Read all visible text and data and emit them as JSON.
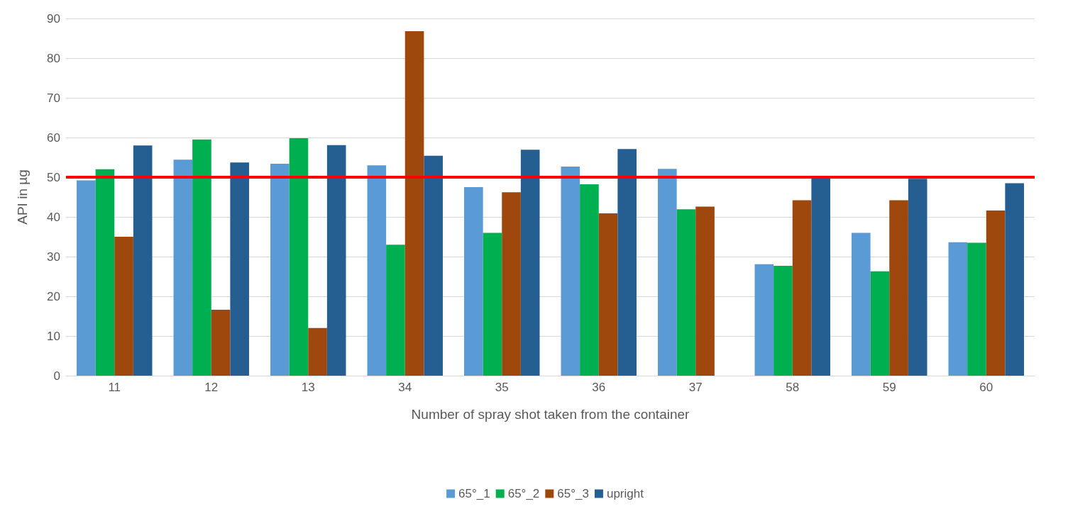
{
  "chart_data": {
    "type": "bar",
    "xlabel": "Number of spray shot taken from the container",
    "ylabel": "API in µg",
    "categories": [
      "11",
      "12",
      "13",
      "34",
      "35",
      "36",
      "37",
      "58",
      "59",
      "60"
    ],
    "series": [
      {
        "name": "65°_1",
        "color": "#5b9bd5",
        "values": [
          49.2,
          54.4,
          53.4,
          53,
          47.5,
          52.7,
          52.1,
          28.1,
          36,
          33.6
        ]
      },
      {
        "name": "65°_2",
        "color": "#00b050",
        "values": [
          52,
          59.5,
          59.8,
          33,
          36,
          48.2,
          41.9,
          27.7,
          26.3,
          33.5
        ]
      },
      {
        "name": "65°_3",
        "color": "#9e480e",
        "values": [
          35,
          16.6,
          12,
          86.8,
          46.2,
          40.9,
          42.6,
          44.2,
          44.2,
          41.6
        ]
      },
      {
        "name": "upright",
        "color": "#255e91",
        "values": [
          58,
          53.7,
          58.1,
          55.4,
          56.9,
          57.1,
          null,
          49.9,
          49.6,
          48.5
        ]
      }
    ],
    "ylim": [
      0,
      90
    ],
    "yticks": [
      0,
      10,
      20,
      30,
      40,
      50,
      60,
      70,
      80,
      90
    ],
    "grid": "y",
    "legend": "bottom",
    "ref_lines": [
      {
        "axis": "y",
        "value": 50,
        "color": "#ff0000",
        "line_style": "solid"
      }
    ]
  }
}
